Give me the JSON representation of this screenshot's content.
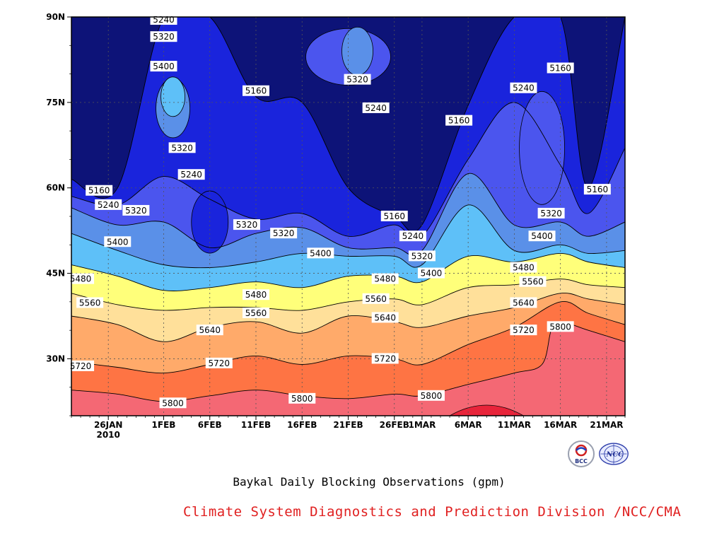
{
  "chart_data": {
    "type": "contour",
    "title": "Baykal Daily Blocking Observations (gpm)",
    "credit": "Climate System Diagnostics and Prediction Division /NCC/CMA",
    "x_tick_labels": [
      "26JAN",
      "1FEB",
      "6FEB",
      "11FEB",
      "16FEB",
      "21FEB",
      "26FEB",
      "1MAR",
      "6MAR",
      "11MAR",
      "16MAR",
      "21MAR"
    ],
    "x_year_label": "2010",
    "y_tick_labels": [
      "30N",
      "45N",
      "60N",
      "75N",
      "90N"
    ],
    "y_ticks": [
      30,
      45,
      60,
      75,
      90
    ],
    "xlim": [
      "2010-01-22",
      "2010-03-23"
    ],
    "ylim": [
      20,
      90
    ],
    "grid": true,
    "contour_levels": [
      5160,
      5240,
      5320,
      5400,
      5480,
      5560,
      5640,
      5720,
      5800,
      5880
    ],
    "fill_colors": [
      "#0d1378",
      "#1a24dc",
      "#4b55ee",
      "#5a90e8",
      "#5ec0f8",
      "#ffff7a",
      "#ffe09a",
      "#ffaa6a",
      "#fe7444",
      "#f46874",
      "#e8243a"
    ],
    "boundary_lats": [
      {
        "level": 5800,
        "points": [
          [
            "2010-01-22",
            24.5
          ],
          [
            "2010-01-27",
            23.8
          ],
          [
            "2010-02-01",
            22.5
          ],
          [
            "2010-02-06",
            23.5
          ],
          [
            "2010-02-11",
            24.5
          ],
          [
            "2010-02-16",
            23.5
          ],
          [
            "2010-02-21",
            23.0
          ],
          [
            "2010-02-26",
            23.8
          ],
          [
            "2010-03-01",
            23.5
          ],
          [
            "2010-03-06",
            25.5
          ],
          [
            "2010-03-11",
            27.5
          ],
          [
            "2010-03-14",
            29.0
          ],
          [
            "2010-03-15",
            35.0
          ],
          [
            "2010-03-16",
            36.5
          ],
          [
            "2010-03-19",
            35.0
          ],
          [
            "2010-03-23",
            33.0
          ]
        ]
      },
      {
        "level": 5720,
        "points": [
          [
            "2010-01-22",
            29.5
          ],
          [
            "2010-01-27",
            28.5
          ],
          [
            "2010-02-01",
            27.5
          ],
          [
            "2010-02-06",
            29.0
          ],
          [
            "2010-02-11",
            30.5
          ],
          [
            "2010-02-16",
            29.0
          ],
          [
            "2010-02-21",
            30.5
          ],
          [
            "2010-02-26",
            30.0
          ],
          [
            "2010-03-01",
            29.0
          ],
          [
            "2010-03-06",
            32.5
          ],
          [
            "2010-03-11",
            35.5
          ],
          [
            "2010-03-16",
            40.0
          ],
          [
            "2010-03-19",
            38.0
          ],
          [
            "2010-03-23",
            36.0
          ]
        ]
      },
      {
        "level": 5640,
        "points": [
          [
            "2010-01-22",
            37.5
          ],
          [
            "2010-01-27",
            36.0
          ],
          [
            "2010-02-01",
            33.0
          ],
          [
            "2010-02-06",
            35.5
          ],
          [
            "2010-02-11",
            36.5
          ],
          [
            "2010-02-16",
            34.5
          ],
          [
            "2010-02-21",
            37.5
          ],
          [
            "2010-02-26",
            36.5
          ],
          [
            "2010-03-01",
            35.5
          ],
          [
            "2010-03-06",
            37.5
          ],
          [
            "2010-03-11",
            39.0
          ],
          [
            "2010-03-16",
            41.5
          ],
          [
            "2010-03-19",
            40.5
          ],
          [
            "2010-03-23",
            39.5
          ]
        ]
      },
      {
        "level": 5560,
        "points": [
          [
            "2010-01-22",
            41.5
          ],
          [
            "2010-01-27",
            39.5
          ],
          [
            "2010-02-01",
            38.5
          ],
          [
            "2010-02-06",
            39.0
          ],
          [
            "2010-02-11",
            39.0
          ],
          [
            "2010-02-16",
            38.5
          ],
          [
            "2010-02-21",
            40.0
          ],
          [
            "2010-02-26",
            40.5
          ],
          [
            "2010-03-01",
            39.5
          ],
          [
            "2010-03-06",
            42.5
          ],
          [
            "2010-03-11",
            43.0
          ],
          [
            "2010-03-16",
            44.0
          ],
          [
            "2010-03-19",
            43.0
          ],
          [
            "2010-03-23",
            42.5
          ]
        ]
      },
      {
        "level": 5480,
        "points": [
          [
            "2010-01-22",
            46.5
          ],
          [
            "2010-01-27",
            44.5
          ],
          [
            "2010-02-01",
            42.0
          ],
          [
            "2010-02-06",
            42.5
          ],
          [
            "2010-02-11",
            43.5
          ],
          [
            "2010-02-16",
            42.5
          ],
          [
            "2010-02-21",
            44.5
          ],
          [
            "2010-02-26",
            44.5
          ],
          [
            "2010-03-01",
            43.5
          ],
          [
            "2010-03-06",
            48.0
          ],
          [
            "2010-03-11",
            47.0
          ],
          [
            "2010-03-16",
            48.5
          ],
          [
            "2010-03-19",
            47.0
          ],
          [
            "2010-03-23",
            46.0
          ]
        ]
      },
      {
        "level": 5400,
        "points": [
          [
            "2010-01-22",
            52.0
          ],
          [
            "2010-01-27",
            49.0
          ],
          [
            "2010-02-01",
            46.5
          ],
          [
            "2010-02-06",
            46.0
          ],
          [
            "2010-02-11",
            47.0
          ],
          [
            "2010-02-16",
            48.5
          ],
          [
            "2010-02-21",
            48.0
          ],
          [
            "2010-02-26",
            48.0
          ],
          [
            "2010-03-01",
            46.5
          ],
          [
            "2010-03-06",
            57.0
          ],
          [
            "2010-03-11",
            49.0
          ],
          [
            "2010-03-16",
            50.0
          ],
          [
            "2010-03-19",
            48.5
          ],
          [
            "2010-03-23",
            49.0
          ]
        ]
      },
      {
        "level": 5320,
        "points": [
          [
            "2010-01-22",
            56.5
          ],
          [
            "2010-01-27",
            53.5
          ],
          [
            "2010-02-01",
            54.0
          ],
          [
            "2010-02-06",
            49.5
          ],
          [
            "2010-02-11",
            52.0
          ],
          [
            "2010-02-16",
            53.0
          ],
          [
            "2010-02-21",
            49.5
          ],
          [
            "2010-02-26",
            49.5
          ],
          [
            "2010-03-01",
            49.0
          ],
          [
            "2010-03-06",
            62.5
          ],
          [
            "2010-03-11",
            53.5
          ],
          [
            "2010-03-16",
            54.0
          ],
          [
            "2010-03-19",
            51.5
          ],
          [
            "2010-03-23",
            54.0
          ]
        ]
      },
      {
        "level": 5240,
        "points": [
          [
            "2010-01-22",
            58.5
          ],
          [
            "2010-01-27",
            57.0
          ],
          [
            "2010-02-01",
            62.0
          ],
          [
            "2010-02-06",
            58.0
          ],
          [
            "2010-02-11",
            54.5
          ],
          [
            "2010-02-16",
            55.5
          ],
          [
            "2010-02-21",
            51.5
          ],
          [
            "2010-02-26",
            53.5
          ],
          [
            "2010-03-01",
            51.5
          ],
          [
            "2010-03-06",
            65.0
          ],
          [
            "2010-03-11",
            75.0
          ],
          [
            "2010-03-16",
            64.0
          ],
          [
            "2010-03-19",
            55.5
          ],
          [
            "2010-03-23",
            67.0
          ]
        ]
      },
      {
        "level": 5160,
        "points": [
          [
            "2010-01-22",
            61.5
          ],
          [
            "2010-01-27",
            60.0
          ],
          [
            "2010-02-01",
            90.0
          ],
          [
            "2010-02-06",
            90.0
          ],
          [
            "2010-02-11",
            76.0
          ],
          [
            "2010-02-16",
            75.0
          ],
          [
            "2010-02-21",
            60.0
          ],
          [
            "2010-02-26",
            55.0
          ],
          [
            "2010-03-01",
            53.5
          ],
          [
            "2010-03-06",
            74.5
          ],
          [
            "2010-03-11",
            90.0
          ],
          [
            "2010-03-16",
            90.0
          ],
          [
            "2010-03-19",
            60.0
          ],
          [
            "2010-03-23",
            90.0
          ]
        ]
      }
    ],
    "contour_labels": [
      {
        "text": "5240",
        "x": "2010-02-01",
        "y": 89.5
      },
      {
        "text": "5320",
        "x": "2010-02-01",
        "y": 86.5
      },
      {
        "text": "5400",
        "x": "2010-02-01",
        "y": 81.3
      },
      {
        "text": "5160",
        "x": "2010-02-11",
        "y": 77.0
      },
      {
        "text": "5320",
        "x": "2010-02-22",
        "y": 79.0
      },
      {
        "text": "5240",
        "x": "2010-02-24",
        "y": 74.0
      },
      {
        "text": "5160",
        "x": "2010-03-05",
        "y": 71.8
      },
      {
        "text": "5240",
        "x": "2010-03-12",
        "y": 77.5
      },
      {
        "text": "5160",
        "x": "2010-03-16",
        "y": 81.0
      },
      {
        "text": "5320",
        "x": "2010-02-03",
        "y": 67.0
      },
      {
        "text": "5240",
        "x": "2010-02-04",
        "y": 62.3
      },
      {
        "text": "5160",
        "x": "2010-01-25",
        "y": 59.5
      },
      {
        "text": "5240",
        "x": "2010-01-26",
        "y": 57.0
      },
      {
        "text": "5320",
        "x": "2010-01-29",
        "y": 56.0
      },
      {
        "text": "5320",
        "x": "2010-02-10",
        "y": 53.5
      },
      {
        "text": "5320",
        "x": "2010-02-14",
        "y": 52.0
      },
      {
        "text": "5160",
        "x": "2010-02-26",
        "y": 55.0
      },
      {
        "text": "5240",
        "x": "2010-02-28",
        "y": 51.5
      },
      {
        "text": "5400",
        "x": "2010-01-27",
        "y": 50.5
      },
      {
        "text": "5400",
        "x": "2010-02-18",
        "y": 48.5
      },
      {
        "text": "5320",
        "x": "2010-02-29",
        "y": 48.0
      },
      {
        "text": "5400",
        "x": "2010-03-02",
        "y": 45.0
      },
      {
        "text": "5160",
        "x": "2010-03-20",
        "y": 59.7
      },
      {
        "text": "5320",
        "x": "2010-03-15",
        "y": 55.5
      },
      {
        "text": "5400",
        "x": "2010-03-14",
        "y": 51.5
      },
      {
        "text": "5480",
        "x": "2010-01-23",
        "y": 44.0
      },
      {
        "text": "5480",
        "x": "2010-02-11",
        "y": 41.2
      },
      {
        "text": "5480",
        "x": "2010-02-25",
        "y": 44.0
      },
      {
        "text": "5480",
        "x": "2010-03-12",
        "y": 46.0
      },
      {
        "text": "5560",
        "x": "2010-01-24",
        "y": 39.8
      },
      {
        "text": "5560",
        "x": "2010-02-11",
        "y": 38.0
      },
      {
        "text": "5560",
        "x": "2010-02-24",
        "y": 40.5
      },
      {
        "text": "5560",
        "x": "2010-03-13",
        "y": 43.5
      },
      {
        "text": "5640",
        "x": "2010-02-06",
        "y": 35.0
      },
      {
        "text": "5640",
        "x": "2010-02-25",
        "y": 37.2
      },
      {
        "text": "5640",
        "x": "2010-03-12",
        "y": 39.8
      },
      {
        "text": "5720",
        "x": "2010-01-23",
        "y": 28.7
      },
      {
        "text": "5720",
        "x": "2010-02-07",
        "y": 29.2
      },
      {
        "text": "5720",
        "x": "2010-02-25",
        "y": 30.0
      },
      {
        "text": "5720",
        "x": "2010-03-12",
        "y": 35.0
      },
      {
        "text": "5800",
        "x": "2010-03-16",
        "y": 35.6
      },
      {
        "text": "5800",
        "x": "2010-02-02",
        "y": 22.2
      },
      {
        "text": "5800",
        "x": "2010-02-16",
        "y": 23.0
      },
      {
        "text": "5800",
        "x": "2010-03-02",
        "y": 23.5
      }
    ]
  },
  "logos": {
    "left": {
      "name": "BCC",
      "text": "BCC"
    },
    "right": {
      "name": "NCC",
      "text": "NCC"
    }
  }
}
